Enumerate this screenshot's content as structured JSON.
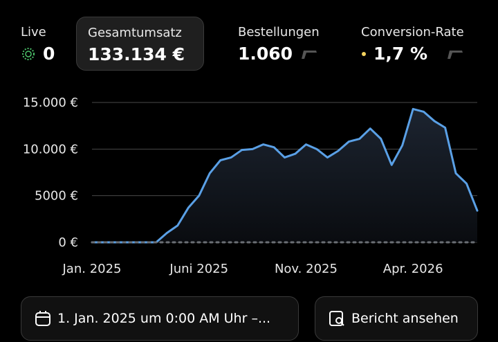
{
  "metrics": [
    {
      "label": "Live",
      "value": "0"
    },
    {
      "label": "Gesamtumsatz",
      "value": "133.134 €"
    },
    {
      "label": "Bestellungen",
      "value": "1.060"
    },
    {
      "label": "Conversion-Rate",
      "value": "1,7 %"
    }
  ],
  "chart_data": {
    "type": "line",
    "categories": [
      "Jan. 2025",
      null,
      null,
      null,
      null,
      null,
      null,
      null,
      null,
      null,
      "Juni 2025",
      null,
      null,
      null,
      null,
      null,
      null,
      null,
      null,
      null,
      "Nov. 2025",
      null,
      null,
      null,
      null,
      null,
      null,
      null,
      null,
      null,
      "Apr. 2026",
      null,
      null,
      null,
      null,
      null,
      null
    ],
    "series": [
      {
        "color": "#5aa0e6",
        "values": [
          0,
          0,
          0,
          0,
          0,
          0,
          0,
          1000,
          1800,
          3700,
          5000,
          7400,
          8800,
          9100,
          9900,
          10000,
          10500,
          10200,
          9100,
          9500,
          10500,
          10000,
          9100,
          9800,
          10800,
          11100,
          12200,
          11100,
          8300,
          10400,
          14300,
          14000,
          13000,
          12300,
          7400,
          6300,
          3400
        ]
      },
      {
        "color": "#6b6f75",
        "dashed": true,
        "values": [
          0,
          0,
          0,
          0,
          0,
          0,
          0,
          0,
          0,
          0,
          0,
          0,
          0,
          0,
          0,
          0,
          0,
          0,
          0,
          0,
          0,
          0,
          0,
          0,
          0,
          0,
          0,
          0,
          0,
          0,
          0,
          0,
          0,
          0,
          0,
          0,
          0
        ]
      }
    ],
    "ylim": [
      0,
      15000
    ],
    "yticks": [
      {
        "value": 0,
        "label": "0 €"
      },
      {
        "value": 5000,
        "label": "5000 €"
      },
      {
        "value": 10000,
        "label": "10.000 €"
      },
      {
        "value": 15000,
        "label": "15.000 €"
      }
    ],
    "grid": true
  },
  "buttons": {
    "date_range": "1. Jan. 2025 um 0:00 AM Uhr –...",
    "report": "Bericht ansehen"
  }
}
